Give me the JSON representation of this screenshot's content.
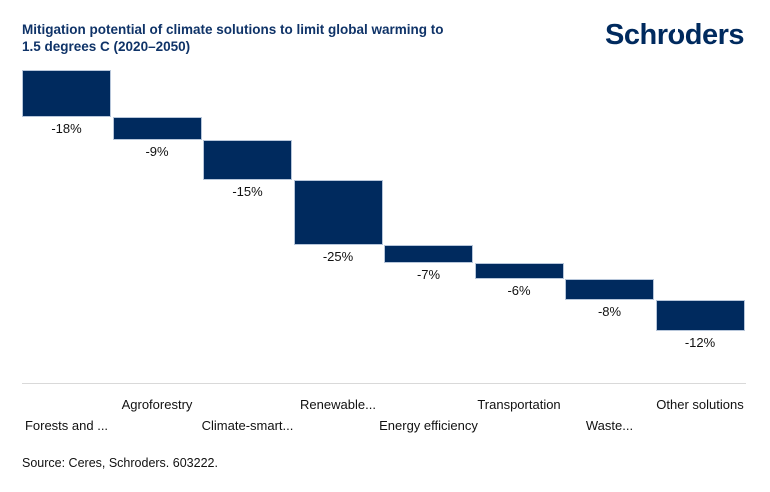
{
  "header": {
    "title_line1": "Mitigation potential of climate solutions to limit global warming to",
    "title_line2": "1.5 degrees C (2020–2050)",
    "logo_text": "Schroders"
  },
  "chart_data": {
    "type": "bar",
    "subtype": "waterfall",
    "title": "Mitigation potential of climate solutions to limit global warming to 1.5 degrees C (2020–2050)",
    "categories": [
      "Forests and ...",
      "Agroforestry",
      "Climate-smart...",
      "Renewable...",
      "Energy efficiency",
      "Transportation",
      "Waste...",
      "Other solutions"
    ],
    "values": [
      -18,
      -9,
      -15,
      -25,
      -7,
      -6,
      -8,
      -12
    ],
    "value_labels": [
      "-18%",
      "-9%",
      "-15%",
      "-25%",
      "-7%",
      "-6%",
      "-8%",
      "-12%"
    ],
    "xlabel": "",
    "ylabel": "",
    "ylim": [
      -100,
      0
    ],
    "grid": false,
    "legend": false,
    "bar_color": "#002a5e",
    "bar_border_color": "#b7c6da",
    "axis_line_color": "#d9d9d9"
  },
  "footer": {
    "source": "Source: Ceres, Schroders. 603222."
  },
  "colors": {
    "title_text": "#0f3368",
    "logo_text": "#002a5e",
    "label_text": "#111111",
    "background": "#ffffff"
  }
}
